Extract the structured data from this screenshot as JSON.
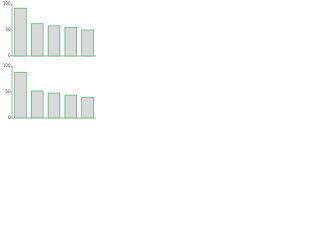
{
  "chart_data": [
    {
      "type": "bar",
      "categories": [
        null,
        null,
        null,
        null,
        null
      ],
      "values": [
        92,
        62,
        58,
        55,
        50
      ],
      "color": "#d9d9d9",
      "edge": "#3aa655",
      "ylim": [
        0,
        100
      ],
      "yticks": [
        0,
        50,
        100
      ],
      "grid": false
    },
    {
      "type": "bar",
      "categories": [
        null,
        null,
        null,
        null,
        null
      ],
      "values": [
        88,
        52,
        48,
        44,
        40
      ],
      "color": "#d9d9d9",
      "edge": "#3aa655",
      "ylim": [
        0,
        100
      ],
      "yticks": [
        0,
        50,
        100
      ],
      "grid": false
    }
  ]
}
